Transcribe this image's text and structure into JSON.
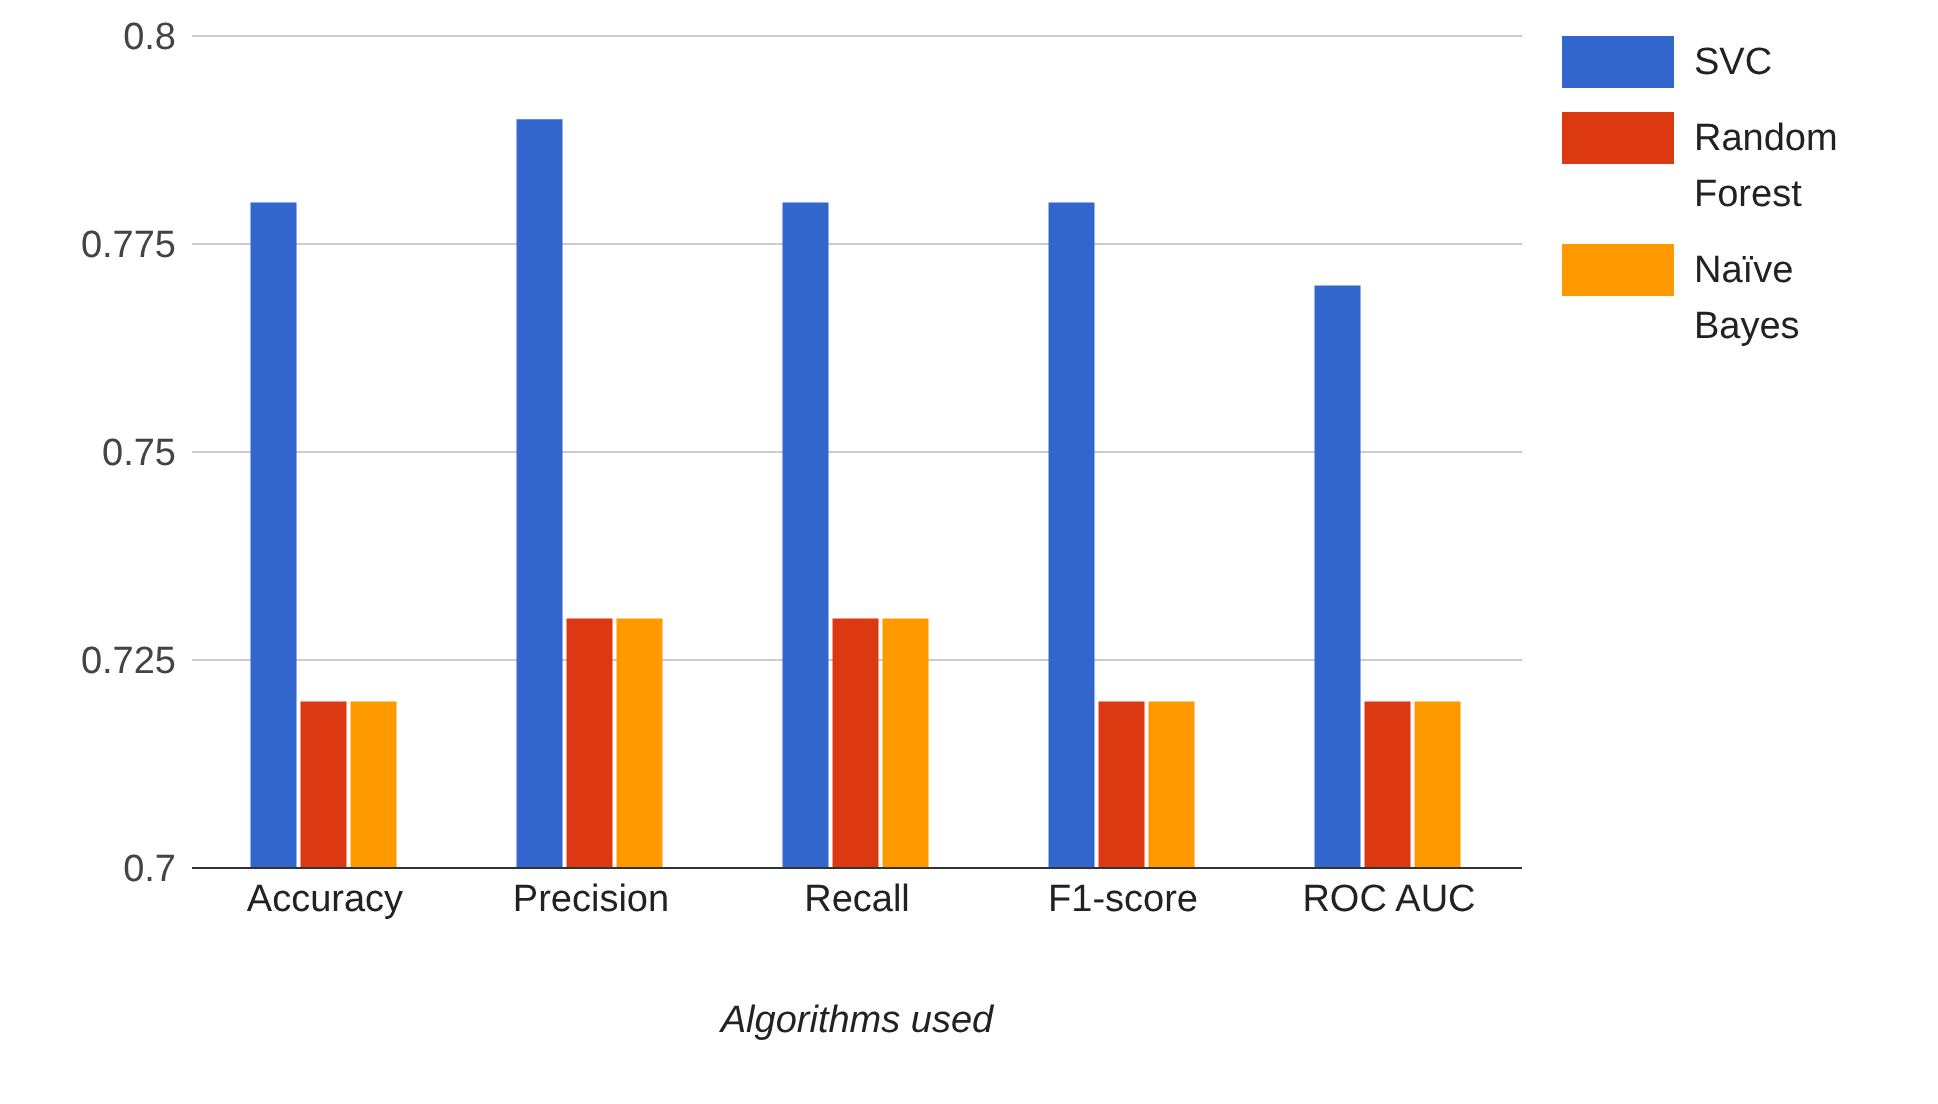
{
  "chart_data": {
    "type": "bar",
    "xlabel": "Algorithms used",
    "categories": [
      "Accuracy",
      "Precision",
      "Recall",
      "F1-score",
      "ROC AUC"
    ],
    "series": [
      {
        "name": "SVC",
        "color": "#3366cc",
        "values": [
          0.78,
          0.79,
          0.78,
          0.78,
          0.77
        ]
      },
      {
        "name": "Random Forest",
        "color": "#dc3912",
        "values": [
          0.72,
          0.73,
          0.73,
          0.72,
          0.72
        ]
      },
      {
        "name": "Naïve Bayes",
        "color": "#ff9900",
        "values": [
          0.72,
          0.73,
          0.73,
          0.72,
          0.72
        ]
      }
    ],
    "ylim": [
      0.7,
      0.8
    ],
    "yticks": [
      0.7,
      0.725,
      0.75,
      0.775,
      0.8
    ],
    "grid": "y",
    "legend": "top right"
  }
}
